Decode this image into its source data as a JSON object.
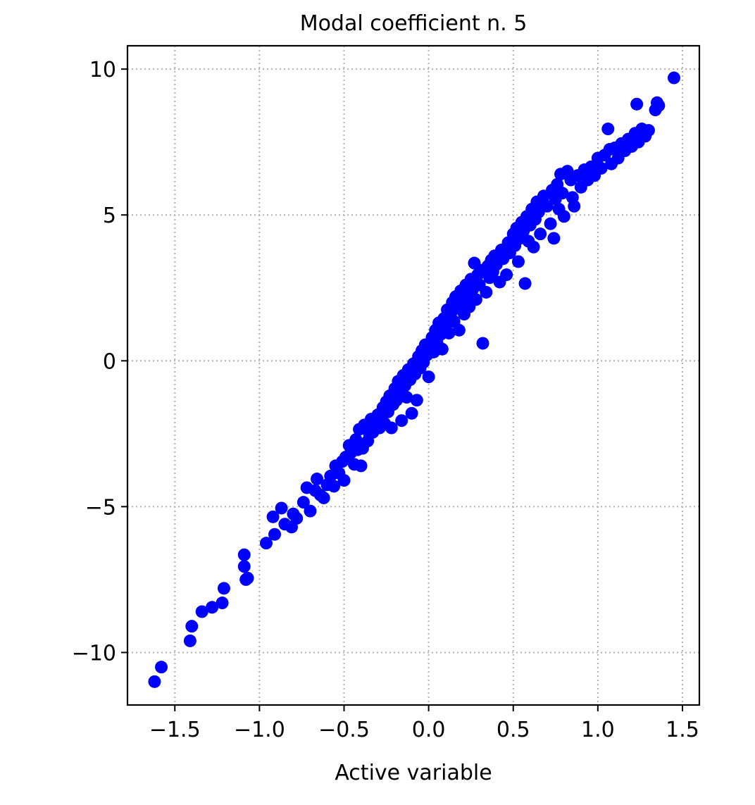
{
  "chart_data": {
    "type": "scatter",
    "title": "Modal coefficient n. 5",
    "xlabel": "Active variable",
    "ylabel": "",
    "xlim": [
      -1.78,
      1.6
    ],
    "ylim": [
      -11.8,
      10.8
    ],
    "xticks": [
      -1.5,
      -1.0,
      -0.5,
      0.0,
      0.5,
      1.0,
      1.5
    ],
    "xtick_labels": [
      "−1.5",
      "−1.0",
      "−0.5",
      "0.0",
      "0.5",
      "1.0",
      "1.5"
    ],
    "yticks": [
      -10,
      -5,
      0,
      5,
      10
    ],
    "ytick_labels": [
      "−10",
      "−5",
      "0",
      "5",
      "10"
    ],
    "grid": true,
    "marker_color": "#0000ff",
    "series": [
      {
        "points": [
          [
            -1.62,
            -11.0
          ],
          [
            -1.58,
            -10.5
          ],
          [
            -1.41,
            -9.6
          ],
          [
            -1.4,
            -9.1
          ],
          [
            -1.34,
            -8.6
          ],
          [
            -1.28,
            -8.45
          ],
          [
            -1.22,
            -8.3
          ],
          [
            -1.21,
            -7.8
          ],
          [
            -1.09,
            -6.65
          ],
          [
            -1.09,
            -7.05
          ],
          [
            -1.08,
            -7.5
          ],
          [
            -1.07,
            -7.45
          ],
          [
            -0.96,
            -6.25
          ],
          [
            -0.91,
            -5.95
          ],
          [
            -0.92,
            -5.35
          ],
          [
            -0.87,
            -5.05
          ],
          [
            -0.85,
            -5.6
          ],
          [
            -0.81,
            -5.7
          ],
          [
            -0.8,
            -5.25
          ],
          [
            -0.78,
            -5.4
          ],
          [
            -0.74,
            -4.85
          ],
          [
            -0.72,
            -4.35
          ],
          [
            -0.7,
            -5.15
          ],
          [
            -0.67,
            -4.45
          ],
          [
            -0.66,
            -4.05
          ],
          [
            -0.64,
            -4.6
          ],
          [
            -0.62,
            -4.7
          ],
          [
            -0.6,
            -4.25
          ],
          [
            -0.58,
            -3.95
          ],
          [
            -0.56,
            -4.3
          ],
          [
            -0.55,
            -3.6
          ],
          [
            -0.53,
            -3.85
          ],
          [
            -0.51,
            -3.45
          ],
          [
            -0.5,
            -4.1
          ],
          [
            -0.49,
            -3.3
          ],
          [
            -0.47,
            -2.9
          ],
          [
            -0.46,
            -3.15
          ],
          [
            -0.44,
            -3.55
          ],
          [
            -0.43,
            -2.7
          ],
          [
            -0.42,
            -3.05
          ],
          [
            -0.41,
            -2.35
          ],
          [
            -0.4,
            -3.6
          ],
          [
            -0.39,
            -3.0
          ],
          [
            -0.38,
            -2.2
          ],
          [
            -0.36,
            -2.75
          ],
          [
            -0.35,
            -2.5
          ],
          [
            -0.34,
            -2.0
          ],
          [
            -0.33,
            -2.45
          ],
          [
            -0.32,
            -2.1
          ],
          [
            -0.3,
            -1.85
          ],
          [
            -0.29,
            -2.3
          ],
          [
            -0.28,
            -1.95
          ],
          [
            -0.27,
            -1.6
          ],
          [
            -0.26,
            -2.15
          ],
          [
            -0.25,
            -1.4
          ],
          [
            -0.24,
            -1.75
          ],
          [
            -0.23,
            -1.2
          ],
          [
            -0.22,
            -2.3
          ],
          [
            -0.21,
            -1.5
          ],
          [
            -0.2,
            -0.95
          ],
          [
            -0.19,
            -1.35
          ],
          [
            -0.18,
            -0.7
          ],
          [
            -0.17,
            -1.1
          ],
          [
            -0.16,
            -2.05
          ],
          [
            -0.15,
            -0.5
          ],
          [
            -0.14,
            -0.85
          ],
          [
            -0.13,
            -1.25
          ],
          [
            -0.12,
            -0.3
          ],
          [
            -0.11,
            -0.65
          ],
          [
            -0.1,
            -1.8
          ],
          [
            -0.09,
            -0.1
          ],
          [
            -0.08,
            -0.45
          ],
          [
            -0.07,
            -1.35
          ],
          [
            -0.06,
            0.15
          ],
          [
            -0.05,
            -0.25
          ],
          [
            -0.04,
            0.35
          ],
          [
            -0.03,
            -0.05
          ],
          [
            -0.02,
            0.55
          ],
          [
            -0.01,
            0.2
          ],
          [
            0.0,
            -0.55
          ],
          [
            0.01,
            0.45
          ],
          [
            0.02,
            0.8
          ],
          [
            0.03,
            0.3
          ],
          [
            0.04,
            1.05
          ],
          [
            0.05,
            0.6
          ],
          [
            0.06,
            1.3
          ],
          [
            0.07,
            0.9
          ],
          [
            0.08,
            0.4
          ],
          [
            0.09,
            1.45
          ],
          [
            0.1,
            1.15
          ],
          [
            0.11,
            1.75
          ],
          [
            0.12,
            0.95
          ],
          [
            0.13,
            1.6
          ],
          [
            0.14,
            2.0
          ],
          [
            0.15,
            1.35
          ],
          [
            0.16,
            2.2
          ],
          [
            0.17,
            1.8
          ],
          [
            0.18,
            1.05
          ],
          [
            0.19,
            2.4
          ],
          [
            0.2,
            2.05
          ],
          [
            0.21,
            1.6
          ],
          [
            0.22,
            2.6
          ],
          [
            0.23,
            2.25
          ],
          [
            0.24,
            1.85
          ],
          [
            0.25,
            2.8
          ],
          [
            0.26,
            2.45
          ],
          [
            0.27,
            3.35
          ],
          [
            0.28,
            2.1
          ],
          [
            0.29,
            2.95
          ],
          [
            0.3,
            2.6
          ],
          [
            0.31,
            3.1
          ],
          [
            0.32,
            0.6
          ],
          [
            0.34,
            2.35
          ],
          [
            0.35,
            3.25
          ],
          [
            0.36,
            2.85
          ],
          [
            0.37,
            3.45
          ],
          [
            0.38,
            3.05
          ],
          [
            0.39,
            3.6
          ],
          [
            0.4,
            3.3
          ],
          [
            0.42,
            2.7
          ],
          [
            0.43,
            3.8
          ],
          [
            0.44,
            3.5
          ],
          [
            0.46,
            2.95
          ],
          [
            0.47,
            4.05
          ],
          [
            0.48,
            3.7
          ],
          [
            0.5,
            4.35
          ],
          [
            0.51,
            3.95
          ],
          [
            0.52,
            4.55
          ],
          [
            0.53,
            3.4
          ],
          [
            0.54,
            4.2
          ],
          [
            0.55,
            4.75
          ],
          [
            0.56,
            4.45
          ],
          [
            0.57,
            2.65
          ],
          [
            0.58,
            4.95
          ],
          [
            0.59,
            4.1
          ],
          [
            0.6,
            4.65
          ],
          [
            0.61,
            5.2
          ],
          [
            0.62,
            3.9
          ],
          [
            0.63,
            4.85
          ],
          [
            0.64,
            5.45
          ],
          [
            0.65,
            5.1
          ],
          [
            0.66,
            4.35
          ],
          [
            0.68,
            5.65
          ],
          [
            0.7,
            5.3
          ],
          [
            0.72,
            4.7
          ],
          [
            0.73,
            5.85
          ],
          [
            0.74,
            4.2
          ],
          [
            0.75,
            5.55
          ],
          [
            0.76,
            6.05
          ],
          [
            0.77,
            5.2
          ],
          [
            0.78,
            6.4
          ],
          [
            0.79,
            5.75
          ],
          [
            0.8,
            4.95
          ],
          [
            0.82,
            6.5
          ],
          [
            0.84,
            6.2
          ],
          [
            0.85,
            5.6
          ],
          [
            0.86,
            5.3
          ],
          [
            0.88,
            6.35
          ],
          [
            0.9,
            5.95
          ],
          [
            0.92,
            6.55
          ],
          [
            0.94,
            6.2
          ],
          [
            0.96,
            6.65
          ],
          [
            0.98,
            6.35
          ],
          [
            1.0,
            6.95
          ],
          [
            1.02,
            6.6
          ],
          [
            1.04,
            7.05
          ],
          [
            1.06,
            7.95
          ],
          [
            1.07,
            7.25
          ],
          [
            1.08,
            6.75
          ],
          [
            1.1,
            7.3
          ],
          [
            1.12,
            6.95
          ],
          [
            1.14,
            7.45
          ],
          [
            1.16,
            7.2
          ],
          [
            1.18,
            7.6
          ],
          [
            1.2,
            7.35
          ],
          [
            1.22,
            7.8
          ],
          [
            1.23,
            8.8
          ],
          [
            1.24,
            7.5
          ],
          [
            1.26,
            7.95
          ],
          [
            1.28,
            7.7
          ],
          [
            1.3,
            7.9
          ],
          [
            1.34,
            8.6
          ],
          [
            1.35,
            8.85
          ],
          [
            1.36,
            8.75
          ],
          [
            1.45,
            9.7
          ]
        ]
      }
    ]
  }
}
